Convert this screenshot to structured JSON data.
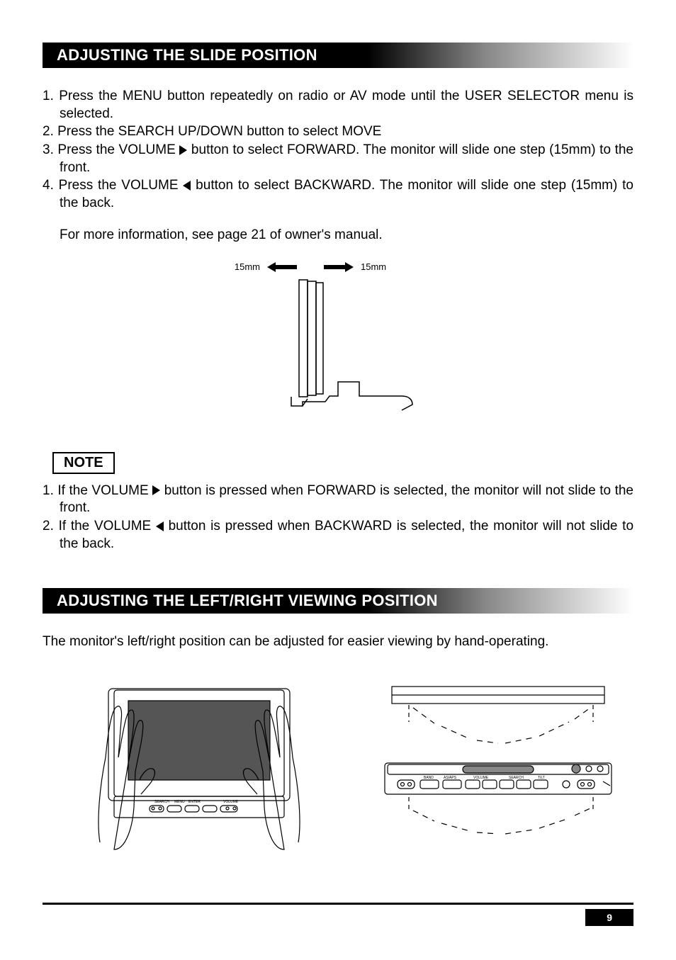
{
  "section1": {
    "title": "ADJUSTING THE SLIDE POSITION",
    "steps": [
      {
        "num": "1.",
        "pre": "Press the MENU button repeatedly  on radio or AV mode until the USER SELECTOR menu is selected."
      },
      {
        "num": "2.",
        "pre": "Press the SEARCH UP/DOWN button to select MOVE"
      },
      {
        "num": "3.",
        "pre": "Press the VOLUME ",
        "tri": "right",
        "post": " button to select FORWARD. The monitor will slide one step (15mm) to the front."
      },
      {
        "num": "4.",
        "pre": "Press the VOLUME ",
        "tri": "left",
        "post": " button to select BACKWARD. The monitor will slide one step (15mm) to the back."
      }
    ],
    "more_info": "For more information, see page 21 of owner's manual.",
    "dim_left": "15mm",
    "dim_right": "15mm"
  },
  "note": {
    "label": "NOTE",
    "items": [
      {
        "num": "1.",
        "pre": "If the VOLUME ",
        "tri": "right",
        "post": "  button is pressed when FORWARD is selected, the monitor will not slide to the front."
      },
      {
        "num": "2.",
        "pre": "If the VOLUME ",
        "tri": "left",
        "post": " button is pressed when BACKWARD is selected, the monitor will not slide to the back."
      }
    ]
  },
  "section2": {
    "title": "ADJUSTING THE LEFT/RIGHT VIEWING POSITION",
    "body": "The monitor's left/right position can be adjusted for easier viewing by hand-operating."
  },
  "page_number": "9",
  "colors": {
    "bg": "#ffffff",
    "text": "#000000",
    "hdr_grad_dark": "#000000",
    "hdr_grad_light": "#ffffff"
  }
}
